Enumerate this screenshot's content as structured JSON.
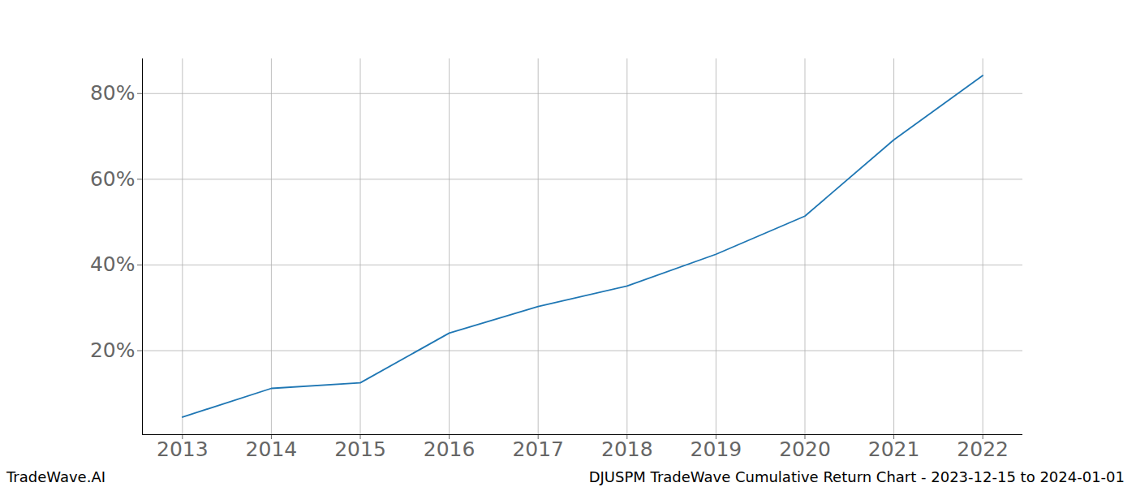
{
  "chart_data": {
    "type": "line",
    "title": "DJUSPM TradeWave Cumulative Return Chart - 2023-12-15 to 2024-01-01",
    "caption": "TradeWave.AI",
    "x": [
      2013,
      2014,
      2015,
      2016,
      2017,
      2018,
      2019,
      2020,
      2021,
      2022
    ],
    "values": [
      4.5,
      11.2,
      12.5,
      24.1,
      30.3,
      35.1,
      42.5,
      51.4,
      69.2,
      84.2
    ],
    "color": "#1f77b4",
    "xlim": [
      2012.55,
      2022.45
    ],
    "xticks": [
      2013,
      2014,
      2015,
      2016,
      2017,
      2018,
      2019,
      2020,
      2021,
      2022
    ],
    "ylim": [
      0.4,
      88.1
    ],
    "yticks": [
      {
        "value": 20,
        "label": "20%"
      },
      {
        "value": 40,
        "label": "40%"
      },
      {
        "value": 60,
        "label": "60%"
      },
      {
        "value": 80,
        "label": "80%"
      }
    ],
    "grid": true
  }
}
